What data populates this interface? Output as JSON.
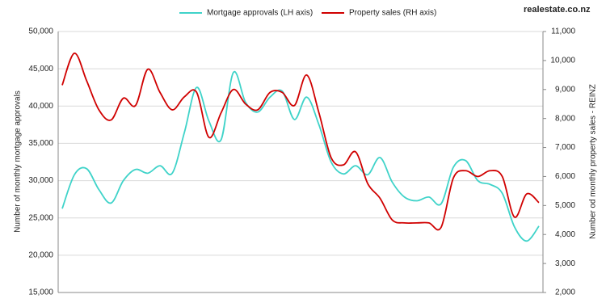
{
  "logo": "realestate.co.nz",
  "chart_data": {
    "type": "line",
    "y_label": "Number of monthly mortgage approvals",
    "y2_label": "Number od monthly property sales - REINZ",
    "categories": [
      null,
      null,
      null,
      null,
      null,
      null,
      null,
      null,
      null,
      null,
      null,
      null,
      null,
      null,
      null,
      null,
      null,
      null,
      null,
      null,
      null,
      null,
      null,
      null,
      null,
      null,
      null,
      null,
      null,
      null,
      null,
      null,
      null,
      null,
      null,
      null,
      null,
      null,
      null,
      null
    ],
    "series": [
      {
        "name": "Mortgage approvals (LH axis)",
        "color": "#3fd3c9",
        "axis": "y",
        "values": [
          26250,
          30800,
          31600,
          28800,
          27000,
          30000,
          31500,
          31000,
          32000,
          31000,
          36500,
          42500,
          38000,
          35500,
          44500,
          40500,
          39200,
          41200,
          42000,
          38200,
          41200,
          37500,
          32500,
          30900,
          32000,
          30800,
          33100,
          29800,
          27800,
          27300,
          27800,
          26900,
          31800,
          32700,
          30000,
          29500,
          28300,
          23800,
          21900,
          23900
        ]
      },
      {
        "name": "Property sales (RH axis)",
        "color": "#d00000",
        "axis": "y2",
        "values": [
          9150,
          10250,
          9300,
          8300,
          7950,
          8700,
          8450,
          9700,
          8900,
          8300,
          8750,
          8900,
          7350,
          8200,
          9000,
          8500,
          8300,
          8900,
          8900,
          8450,
          9500,
          8200,
          6650,
          6400,
          6850,
          5750,
          5250,
          4500,
          4400,
          4400,
          4400,
          4250,
          5950,
          6200,
          6000,
          6200,
          6000,
          4600,
          5400,
          5100
        ]
      }
    ],
    "ylim": [
      15000,
      50000
    ],
    "yticks": [
      {
        "value": 15000,
        "label": "15,000"
      },
      {
        "value": 20000,
        "label": "20,000"
      },
      {
        "value": 25000,
        "label": "25,000"
      },
      {
        "value": 30000,
        "label": "30,000"
      },
      {
        "value": 35000,
        "label": "35,000"
      },
      {
        "value": 40000,
        "label": "40,000"
      },
      {
        "value": 45000,
        "label": "45,000"
      },
      {
        "value": 50000,
        "label": "50,000"
      }
    ],
    "y2lim": [
      2000,
      11000
    ],
    "y2ticks": [
      {
        "value": 2000,
        "label": "2,000"
      },
      {
        "value": 3000,
        "label": "3,000"
      },
      {
        "value": 4000,
        "label": "4,000"
      },
      {
        "value": 5000,
        "label": "5,000"
      },
      {
        "value": 6000,
        "label": "6,000"
      },
      {
        "value": 7000,
        "label": "7,000"
      },
      {
        "value": 8000,
        "label": "8,000"
      },
      {
        "value": 9000,
        "label": "9,000"
      },
      {
        "value": 10000,
        "label": "10,000"
      },
      {
        "value": 11000,
        "label": "11,000"
      }
    ],
    "grid": true
  }
}
